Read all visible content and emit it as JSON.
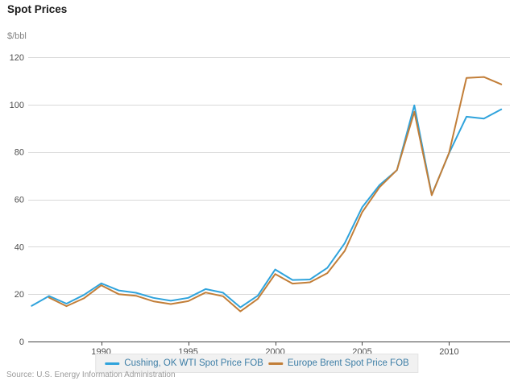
{
  "page": {
    "title": "Spot Prices",
    "units_label": "$/bbl",
    "source": "Source: U.S. Energy Information Administration"
  },
  "colors": {
    "wti_line": "#2fa3dc",
    "brent_line": "#c27e38",
    "gridline": "#d9d9d9",
    "axis": "#454545",
    "tick_label": "#4d4d4d",
    "legend_text": "#3d7ea6",
    "legend_background": "#f1f1f1"
  },
  "chart_data": {
    "type": "line",
    "title": "Spot Prices",
    "xlabel": "",
    "ylabel": "$/bbl",
    "grid": true,
    "legend_position": "bottom",
    "xlim": [
      1985.8,
      2013.5
    ],
    "ylim": [
      0,
      120
    ],
    "x_ticks": [
      1990,
      1995,
      2000,
      2005,
      2010
    ],
    "y_ticks": [
      0,
      20,
      40,
      60,
      80,
      100,
      120
    ],
    "series": [
      {
        "name": "Cushing, OK WTI Spot Price FOB",
        "color": "#2fa3dc",
        "x": [
          1986,
          1987,
          1988,
          1989,
          1990,
          1991,
          1992,
          1993,
          1994,
          1995,
          1996,
          1997,
          1998,
          1999,
          2000,
          2001,
          2002,
          2003,
          2004,
          2005,
          2006,
          2007,
          2008,
          2009,
          2010,
          2011,
          2012,
          2013
        ],
        "values": [
          15.05,
          19.2,
          15.97,
          19.64,
          24.53,
          21.54,
          20.58,
          18.43,
          17.2,
          18.43,
          22.12,
          20.61,
          14.42,
          19.34,
          30.38,
          25.98,
          26.18,
          31.08,
          41.51,
          56.64,
          66.05,
          72.34,
          99.67,
          61.95,
          79.48,
          94.88,
          94.05,
          97.98
        ]
      },
      {
        "name": "Europe Brent Spot Price FOB",
        "color": "#c27e38",
        "x": [
          1987,
          1988,
          1989,
          1990,
          1991,
          1992,
          1993,
          1994,
          1995,
          1996,
          1997,
          1998,
          1999,
          2000,
          2001,
          2002,
          2003,
          2004,
          2005,
          2006,
          2007,
          2008,
          2009,
          2010,
          2011,
          2012,
          2013
        ],
        "values": [
          18.53,
          14.91,
          18.23,
          23.73,
          20.0,
          19.32,
          16.97,
          15.82,
          17.02,
          20.67,
          19.09,
          12.72,
          17.97,
          28.5,
          24.44,
          24.99,
          28.85,
          38.26,
          54.57,
          65.14,
          72.39,
          96.94,
          61.74,
          79.61,
          111.26,
          111.63,
          108.56
        ]
      }
    ]
  }
}
